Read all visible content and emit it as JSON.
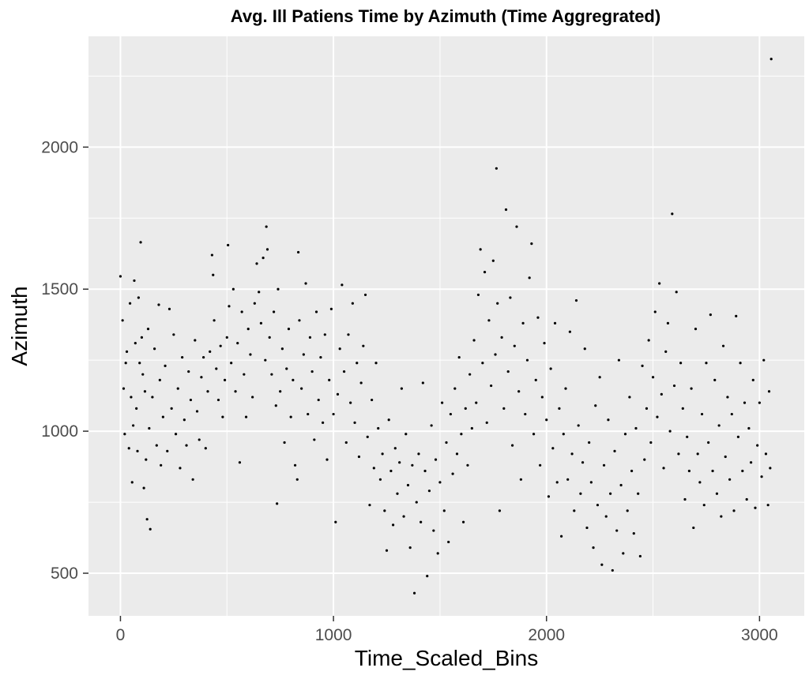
{
  "chart_data": {
    "type": "scatter",
    "title": "Avg. Ill Patiens Time by Azimuth (Time Aggregrated)",
    "xlabel": "Time_Scaled_Bins",
    "ylabel": "Azimuth",
    "xlim": [
      -150,
      3210
    ],
    "ylim": [
      350,
      2390
    ],
    "x_ticks": [
      0,
      1000,
      2000,
      3000
    ],
    "y_ticks": [
      500,
      1000,
      1500,
      2000
    ],
    "grid": true,
    "background_color": "#ebebeb",
    "point_color": "#000000",
    "series": [
      {
        "points": [
          [
            0,
            1545
          ],
          [
            10,
            1390
          ],
          [
            15,
            1150
          ],
          [
            20,
            990
          ],
          [
            25,
            1240
          ],
          [
            30,
            1280
          ],
          [
            40,
            940
          ],
          [
            45,
            1450
          ],
          [
            50,
            1120
          ],
          [
            55,
            820
          ],
          [
            60,
            1020
          ],
          [
            65,
            1530
          ],
          [
            70,
            1310
          ],
          [
            75,
            1080
          ],
          [
            80,
            930
          ],
          [
            85,
            1470
          ],
          [
            90,
            1240
          ],
          [
            95,
            1665
          ],
          [
            100,
            1330
          ],
          [
            105,
            1200
          ],
          [
            110,
            800
          ],
          [
            115,
            1140
          ],
          [
            120,
            900
          ],
          [
            125,
            690
          ],
          [
            130,
            1360
          ],
          [
            135,
            1010
          ],
          [
            140,
            655
          ],
          [
            150,
            1120
          ],
          [
            160,
            1290
          ],
          [
            170,
            950
          ],
          [
            180,
            1445
          ],
          [
            185,
            1180
          ],
          [
            190,
            880
          ],
          [
            200,
            1050
          ],
          [
            210,
            1230
          ],
          [
            220,
            930
          ],
          [
            230,
            1430
          ],
          [
            240,
            1080
          ],
          [
            250,
            1340
          ],
          [
            260,
            990
          ],
          [
            270,
            1150
          ],
          [
            280,
            870
          ],
          [
            290,
            1260
          ],
          [
            300,
            1040
          ],
          [
            310,
            950
          ],
          [
            320,
            1210
          ],
          [
            330,
            1110
          ],
          [
            340,
            830
          ],
          [
            350,
            1320
          ],
          [
            360,
            1070
          ],
          [
            370,
            970
          ],
          [
            380,
            1190
          ],
          [
            390,
            1260
          ],
          [
            400,
            940
          ],
          [
            410,
            1140
          ],
          [
            420,
            1280
          ],
          [
            430,
            1620
          ],
          [
            435,
            1550
          ],
          [
            440,
            1390
          ],
          [
            450,
            1220
          ],
          [
            460,
            1110
          ],
          [
            470,
            1300
          ],
          [
            480,
            1050
          ],
          [
            490,
            1180
          ],
          [
            500,
            1330
          ],
          [
            505,
            1655
          ],
          [
            510,
            1440
          ],
          [
            520,
            1240
          ],
          [
            530,
            1500
          ],
          [
            540,
            1140
          ],
          [
            550,
            1310
          ],
          [
            560,
            890
          ],
          [
            570,
            1420
          ],
          [
            580,
            1200
          ],
          [
            590,
            1050
          ],
          [
            600,
            1360
          ],
          [
            610,
            1270
          ],
          [
            620,
            1120
          ],
          [
            630,
            1450
          ],
          [
            640,
            1590
          ],
          [
            650,
            1490
          ],
          [
            660,
            1380
          ],
          [
            670,
            1610
          ],
          [
            680,
            1250
          ],
          [
            685,
            1720
          ],
          [
            690,
            1640
          ],
          [
            700,
            1330
          ],
          [
            710,
            1200
          ],
          [
            720,
            1420
          ],
          [
            730,
            1090
          ],
          [
            735,
            745
          ],
          [
            740,
            1500
          ],
          [
            750,
            1140
          ],
          [
            760,
            1290
          ],
          [
            770,
            960
          ],
          [
            780,
            1220
          ],
          [
            790,
            1360
          ],
          [
            800,
            1050
          ],
          [
            810,
            1180
          ],
          [
            820,
            880
          ],
          [
            830,
            830
          ],
          [
            835,
            1630
          ],
          [
            840,
            1390
          ],
          [
            850,
            1150
          ],
          [
            860,
            1270
          ],
          [
            870,
            1520
          ],
          [
            880,
            1060
          ],
          [
            890,
            1330
          ],
          [
            900,
            1210
          ],
          [
            910,
            970
          ],
          [
            920,
            1420
          ],
          [
            930,
            1110
          ],
          [
            940,
            1260
          ],
          [
            950,
            1030
          ],
          [
            960,
            1340
          ],
          [
            970,
            900
          ],
          [
            980,
            1180
          ],
          [
            990,
            1430
          ],
          [
            1000,
            1060
          ],
          [
            1010,
            680
          ],
          [
            1020,
            1130
          ],
          [
            1030,
            1290
          ],
          [
            1040,
            1515
          ],
          [
            1050,
            1210
          ],
          [
            1060,
            960
          ],
          [
            1070,
            1340
          ],
          [
            1080,
            1100
          ],
          [
            1090,
            1450
          ],
          [
            1100,
            1030
          ],
          [
            1110,
            1240
          ],
          [
            1120,
            910
          ],
          [
            1130,
            1170
          ],
          [
            1140,
            1300
          ],
          [
            1150,
            1480
          ],
          [
            1160,
            980
          ],
          [
            1170,
            740
          ],
          [
            1180,
            1110
          ],
          [
            1190,
            870
          ],
          [
            1200,
            1240
          ],
          [
            1210,
            1010
          ],
          [
            1220,
            830
          ],
          [
            1230,
            920
          ],
          [
            1240,
            720
          ],
          [
            1250,
            580
          ],
          [
            1260,
            1040
          ],
          [
            1270,
            860
          ],
          [
            1280,
            670
          ],
          [
            1290,
            940
          ],
          [
            1300,
            780
          ],
          [
            1310,
            890
          ],
          [
            1320,
            1150
          ],
          [
            1330,
            700
          ],
          [
            1340,
            990
          ],
          [
            1350,
            810
          ],
          [
            1360,
            590
          ],
          [
            1370,
            880
          ],
          [
            1380,
            430
          ],
          [
            1390,
            750
          ],
          [
            1400,
            920
          ],
          [
            1410,
            680
          ],
          [
            1420,
            1170
          ],
          [
            1430,
            860
          ],
          [
            1440,
            490
          ],
          [
            1450,
            790
          ],
          [
            1460,
            1020
          ],
          [
            1470,
            650
          ],
          [
            1480,
            900
          ],
          [
            1490,
            570
          ],
          [
            1500,
            820
          ],
          [
            1510,
            1100
          ],
          [
            1520,
            720
          ],
          [
            1530,
            960
          ],
          [
            1540,
            610
          ],
          [
            1550,
            1060
          ],
          [
            1560,
            850
          ],
          [
            1570,
            1150
          ],
          [
            1580,
            920
          ],
          [
            1590,
            1260
          ],
          [
            1600,
            990
          ],
          [
            1610,
            680
          ],
          [
            1620,
            1080
          ],
          [
            1630,
            880
          ],
          [
            1640,
            1200
          ],
          [
            1650,
            1010
          ],
          [
            1660,
            1320
          ],
          [
            1670,
            1100
          ],
          [
            1680,
            1480
          ],
          [
            1690,
            1640
          ],
          [
            1700,
            1240
          ],
          [
            1710,
            1560
          ],
          [
            1720,
            1030
          ],
          [
            1730,
            1390
          ],
          [
            1740,
            1160
          ],
          [
            1750,
            1600
          ],
          [
            1760,
            1270
          ],
          [
            1765,
            1925
          ],
          [
            1770,
            1450
          ],
          [
            1780,
            720
          ],
          [
            1790,
            1330
          ],
          [
            1800,
            1080
          ],
          [
            1810,
            1780
          ],
          [
            1820,
            1210
          ],
          [
            1830,
            1470
          ],
          [
            1840,
            950
          ],
          [
            1850,
            1300
          ],
          [
            1860,
            1720
          ],
          [
            1870,
            1140
          ],
          [
            1880,
            830
          ],
          [
            1890,
            1380
          ],
          [
            1900,
            1060
          ],
          [
            1910,
            1250
          ],
          [
            1920,
            1540
          ],
          [
            1930,
            1660
          ],
          [
            1940,
            990
          ],
          [
            1950,
            1180
          ],
          [
            1960,
            1400
          ],
          [
            1970,
            880
          ],
          [
            1980,
            1120
          ],
          [
            1990,
            1310
          ],
          [
            2000,
            1040
          ],
          [
            2010,
            770
          ],
          [
            2020,
            1220
          ],
          [
            2030,
            940
          ],
          [
            2040,
            1380
          ],
          [
            2050,
            820
          ],
          [
            2060,
            1080
          ],
          [
            2070,
            630
          ],
          [
            2080,
            990
          ],
          [
            2090,
            1150
          ],
          [
            2100,
            830
          ],
          [
            2110,
            1350
          ],
          [
            2120,
            920
          ],
          [
            2130,
            720
          ],
          [
            2140,
            1460
          ],
          [
            2150,
            1020
          ],
          [
            2160,
            780
          ],
          [
            2170,
            890
          ],
          [
            2180,
            1290
          ],
          [
            2190,
            660
          ],
          [
            2200,
            960
          ],
          [
            2210,
            820
          ],
          [
            2220,
            590
          ],
          [
            2230,
            1090
          ],
          [
            2240,
            740
          ],
          [
            2250,
            1190
          ],
          [
            2260,
            530
          ],
          [
            2270,
            880
          ],
          [
            2280,
            700
          ],
          [
            2290,
            1040
          ],
          [
            2300,
            780
          ],
          [
            2310,
            510
          ],
          [
            2320,
            930
          ],
          [
            2330,
            650
          ],
          [
            2340,
            1250
          ],
          [
            2350,
            810
          ],
          [
            2360,
            570
          ],
          [
            2370,
            990
          ],
          [
            2380,
            720
          ],
          [
            2390,
            1120
          ],
          [
            2400,
            860
          ],
          [
            2410,
            640
          ],
          [
            2420,
            1010
          ],
          [
            2430,
            780
          ],
          [
            2440,
            560
          ],
          [
            2450,
            1230
          ],
          [
            2460,
            900
          ],
          [
            2470,
            1080
          ],
          [
            2480,
            1320
          ],
          [
            2490,
            960
          ],
          [
            2500,
            1190
          ],
          [
            2510,
            1420
          ],
          [
            2520,
            1050
          ],
          [
            2530,
            1520
          ],
          [
            2540,
            1130
          ],
          [
            2550,
            870
          ],
          [
            2560,
            1280
          ],
          [
            2570,
            1380
          ],
          [
            2580,
            1000
          ],
          [
            2590,
            1765
          ],
          [
            2600,
            1160
          ],
          [
            2610,
            1490
          ],
          [
            2620,
            920
          ],
          [
            2630,
            1240
          ],
          [
            2640,
            1080
          ],
          [
            2650,
            760
          ],
          [
            2660,
            980
          ],
          [
            2670,
            860
          ],
          [
            2680,
            1150
          ],
          [
            2690,
            660
          ],
          [
            2700,
            1360
          ],
          [
            2710,
            920
          ],
          [
            2720,
            820
          ],
          [
            2730,
            1060
          ],
          [
            2740,
            740
          ],
          [
            2750,
            1240
          ],
          [
            2760,
            960
          ],
          [
            2770,
            1410
          ],
          [
            2780,
            860
          ],
          [
            2790,
            1180
          ],
          [
            2800,
            780
          ],
          [
            2810,
            1020
          ],
          [
            2820,
            700
          ],
          [
            2830,
            1300
          ],
          [
            2840,
            910
          ],
          [
            2850,
            1120
          ],
          [
            2860,
            830
          ],
          [
            2870,
            1060
          ],
          [
            2880,
            720
          ],
          [
            2890,
            1405
          ],
          [
            2900,
            980
          ],
          [
            2910,
            1240
          ],
          [
            2920,
            860
          ],
          [
            2930,
            1100
          ],
          [
            2940,
            760
          ],
          [
            2950,
            1010
          ],
          [
            2960,
            890
          ],
          [
            2970,
            1180
          ],
          [
            2980,
            730
          ],
          [
            2990,
            950
          ],
          [
            3000,
            1100
          ],
          [
            3010,
            840
          ],
          [
            3020,
            1250
          ],
          [
            3030,
            920
          ],
          [
            3040,
            740
          ],
          [
            3045,
            1140
          ],
          [
            3050,
            870
          ],
          [
            3055,
            2310
          ]
        ]
      }
    ]
  }
}
